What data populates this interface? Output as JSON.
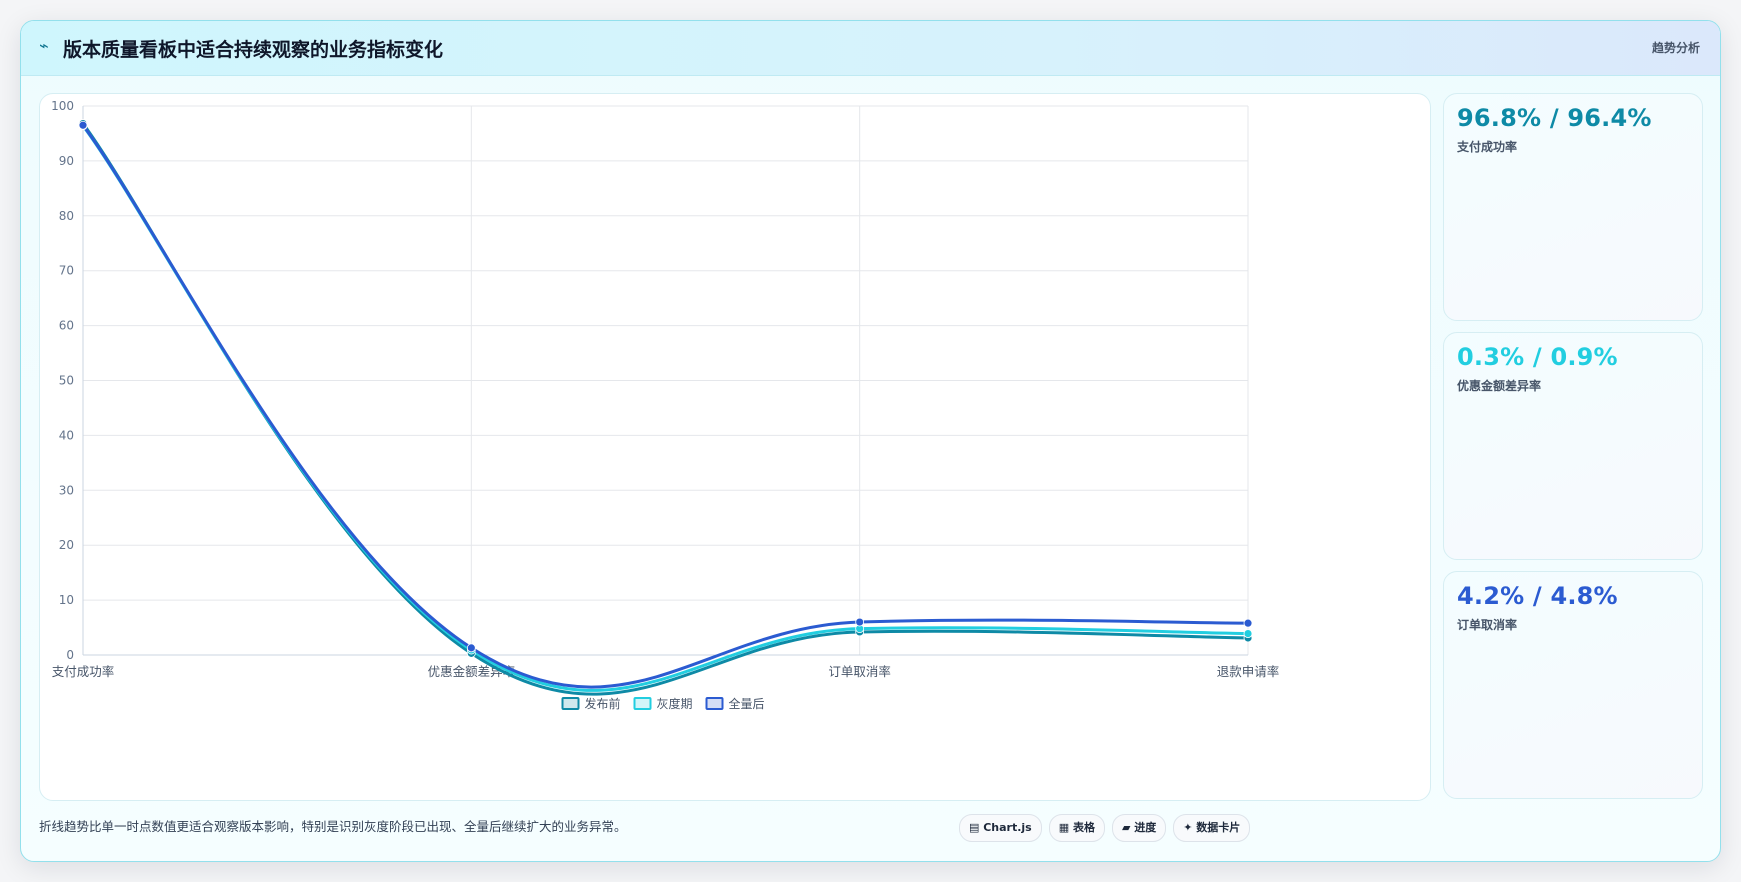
{
  "header": {
    "icon": "bolt-icon",
    "title": "版本质量看板中适合持续观察的业务指标变化",
    "tag": "趋势分析"
  },
  "stats": [
    {
      "value": "96.8% / 96.4%",
      "label": "支付成功率",
      "color": "#0e8aa6"
    },
    {
      "value": "0.3% / 0.9%",
      "label": "优惠金额差异率",
      "color": "#22cee0"
    },
    {
      "value": "4.2% / 4.8%",
      "label": "订单取消率",
      "color": "#2b5bd1"
    }
  ],
  "footer": {
    "caption": "折线趋势比单一时点数值更适合观察版本影响，特别是识别灰度阶段已出现、全量后继续扩大的业务异常。",
    "chips": [
      "▤ Chart.js",
      "▦ 表格",
      "▰ 进度",
      "✦ 数据卡片"
    ]
  },
  "chart_data": {
    "type": "line",
    "categories": [
      "支付成功率",
      "优惠金额差异率",
      "订单取消率",
      "退款申请率"
    ],
    "series": [
      {
        "name": "发布前",
        "values": [
          96.8,
          0.3,
          4.2,
          3.1
        ],
        "color": "#0e8aa6"
      },
      {
        "name": "灰度期",
        "values": [
          96.4,
          0.9,
          4.8,
          3.9
        ],
        "color": "#22cee0"
      },
      {
        "name": "全量后",
        "values": [
          96.5,
          1.3,
          6.0,
          5.8
        ],
        "color": "#2b5bd1"
      }
    ],
    "ylim": [
      0,
      100
    ],
    "yticks": [
      "0",
      "10",
      "20",
      "30",
      "40",
      "50",
      "60",
      "70",
      "80",
      "90",
      "100"
    ],
    "grid": true,
    "legend": "bottom"
  }
}
